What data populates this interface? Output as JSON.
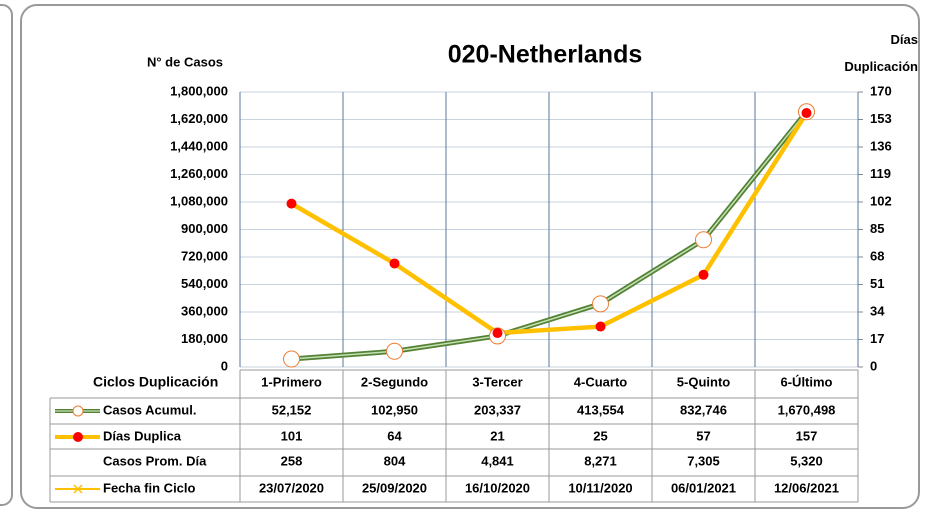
{
  "chart_data": {
    "type": "line",
    "title": "020-Netherlands",
    "y_label": "N° de Casos",
    "y2_label": "Días Duplicación",
    "categories_title": "Ciclos Duplicación",
    "categories": [
      "1-Primero",
      "2-Segundo",
      "3-Tercer",
      "4-Cuarto",
      "5-Quinto",
      "6-Último"
    ],
    "series": [
      {
        "name": "Casos Acumul.",
        "color": "#548235",
        "marker_color": "#ed7d31",
        "values": [
          52152,
          102950,
          203337,
          413554,
          832746,
          1670498
        ],
        "value_labels": [
          "52,152",
          "102,950",
          "203,337",
          "413,554",
          "832,746",
          "1,670,498"
        ]
      },
      {
        "name": "Días Duplica",
        "color": "#ffc000",
        "marker_color": "#ff0000",
        "axis": "y2",
        "values": [
          101,
          64,
          21,
          25,
          57,
          157
        ]
      }
    ],
    "table_rows": [
      {
        "name": "Casos Prom. Día",
        "values": [
          258,
          804,
          4841,
          8271,
          7305,
          5320
        ],
        "value_labels": [
          "258",
          "804",
          "4,841",
          "8,271",
          "7,305",
          "5,320"
        ]
      },
      {
        "name": "Fecha fin Ciclo",
        "color": "#ffc000",
        "values": [
          "23/07/2020",
          "25/09/2020",
          "16/10/2020",
          "10/11/2020",
          "06/01/2021",
          "12/06/2021"
        ]
      }
    ],
    "ylim": [
      0,
      1800000
    ],
    "yticks": [
      {
        "value": 0,
        "label": "0"
      },
      {
        "value": 180000,
        "label": "180,000"
      },
      {
        "value": 360000,
        "label": "360,000"
      },
      {
        "value": 540000,
        "label": "540,000"
      },
      {
        "value": 720000,
        "label": "720,000"
      },
      {
        "value": 900000,
        "label": "900,000"
      },
      {
        "value": 1080000,
        "label": "1,080,000"
      },
      {
        "value": 1260000,
        "label": "1,260,000"
      },
      {
        "value": 1440000,
        "label": "1,440,000"
      },
      {
        "value": 1620000,
        "label": "1,620,000"
      },
      {
        "value": 1800000,
        "label": "1,800,000"
      }
    ],
    "y2lim": [
      0,
      170
    ],
    "y2ticks": [
      0,
      17,
      34,
      51,
      68,
      85,
      102,
      119,
      136,
      153,
      170
    ],
    "grid": true
  }
}
